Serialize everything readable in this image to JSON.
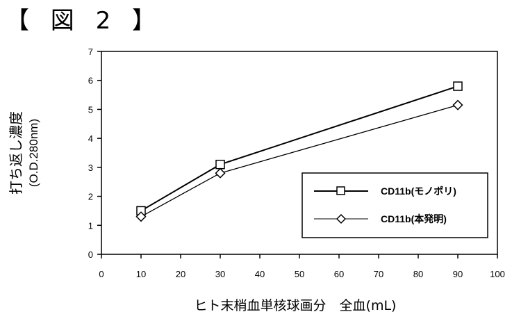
{
  "figure_label": "【 図 2 】",
  "chart_data": {
    "type": "line",
    "title": "",
    "ylabel": "打ち返し濃度",
    "ylabel_unit": "(O.D.280nm)",
    "xlabel": "ヒト末梢血単核球画分　全血(mL)",
    "xlim": [
      0,
      100
    ],
    "ylim": [
      0,
      7
    ],
    "xticks": [
      0,
      10,
      20,
      30,
      40,
      50,
      60,
      70,
      80,
      90,
      100
    ],
    "yticks": [
      0,
      1,
      2,
      3,
      4,
      5,
      6,
      7
    ],
    "grid": false,
    "legend_position": "right",
    "series": [
      {
        "name": "CD11b(モノポリ)",
        "marker": "square",
        "color": "#000000",
        "x": [
          10,
          30,
          90
        ],
        "y": [
          1.5,
          3.1,
          5.8
        ]
      },
      {
        "name": "CD11b(本発明)",
        "marker": "diamond",
        "color": "#000000",
        "x": [
          10,
          30,
          90
        ],
        "y": [
          1.3,
          2.8,
          5.15
        ]
      }
    ]
  }
}
